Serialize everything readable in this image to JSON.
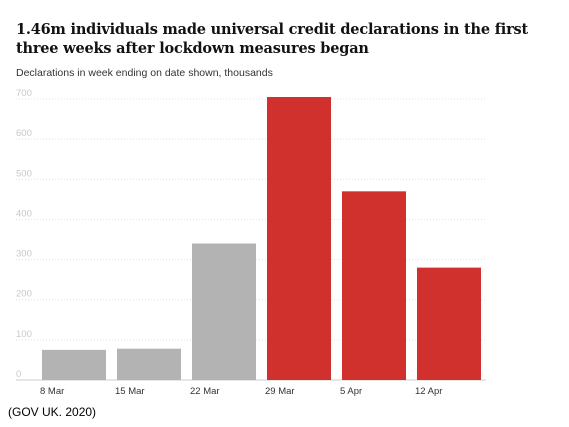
{
  "chart_data": {
    "type": "bar",
    "title": "1.46m individuals made universal credit declarations in the first three weeks after lockdown measures began",
    "subtitle": "Declarations in week ending on date shown, thousands",
    "categories": [
      "8 Mar",
      "15 Mar",
      "22 Mar",
      "29 Mar",
      "5 Apr",
      "12 Apr"
    ],
    "values": [
      75,
      78,
      340,
      705,
      470,
      280
    ],
    "bar_colors": [
      "#b3b3b3",
      "#b3b3b3",
      "#b3b3b3",
      "#d0312d",
      "#d0312d",
      "#d0312d"
    ],
    "ylim": [
      0,
      700
    ],
    "yticks": [
      0,
      100,
      200,
      300,
      400,
      500,
      600,
      700
    ],
    "grid": true,
    "xlabel": "",
    "ylabel": ""
  },
  "source": "(GOV UK. 2020)",
  "colors": {
    "grid": "#e0e0e0",
    "tick_label": "#c8c8c8",
    "x_tick_label": "#333333"
  }
}
